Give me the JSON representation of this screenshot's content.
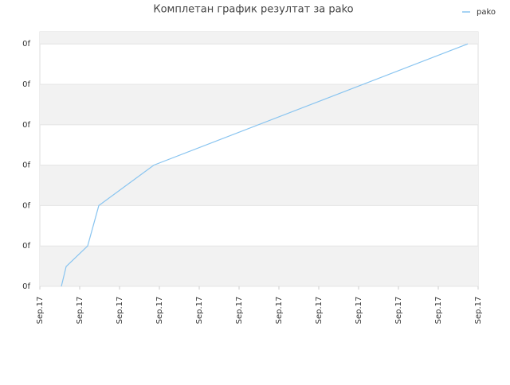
{
  "chart_data": {
    "type": "line",
    "title": "Комплетан график резултат за pako",
    "x": [
      0.54,
      0.66,
      1.2,
      1.48,
      2.86,
      10.74
    ],
    "series": [
      {
        "name": "pako",
        "color": "#88c4f0",
        "values": [
          0,
          0.49,
          1,
          2,
          3,
          6
        ]
      }
    ],
    "xlim": [
      0,
      11
    ],
    "xticks": [
      {
        "value": 0,
        "label": "Sep.17"
      },
      {
        "value": 1,
        "label": "Sep.17"
      },
      {
        "value": 2,
        "label": "Sep.17"
      },
      {
        "value": 3,
        "label": "Sep.17"
      },
      {
        "value": 4,
        "label": "Sep.17"
      },
      {
        "value": 5,
        "label": "Sep.17"
      },
      {
        "value": 6,
        "label": "Sep.17"
      },
      {
        "value": 7,
        "label": "Sep.17"
      },
      {
        "value": 8,
        "label": "Sep.17"
      },
      {
        "value": 9,
        "label": "Sep.17"
      },
      {
        "value": 10,
        "label": "Sep.17"
      },
      {
        "value": 11,
        "label": "Sep.17"
      }
    ],
    "ylim": [
      0,
      6.3
    ],
    "yticks": [
      {
        "value": 0,
        "label": "0f"
      },
      {
        "value": 1,
        "label": "0f"
      },
      {
        "value": 2,
        "label": "0f"
      },
      {
        "value": 3,
        "label": "0f"
      },
      {
        "value": 4,
        "label": "0f"
      },
      {
        "value": 5,
        "label": "0f"
      },
      {
        "value": 6,
        "label": "0f"
      }
    ],
    "grid": true,
    "legend": "top-right"
  }
}
